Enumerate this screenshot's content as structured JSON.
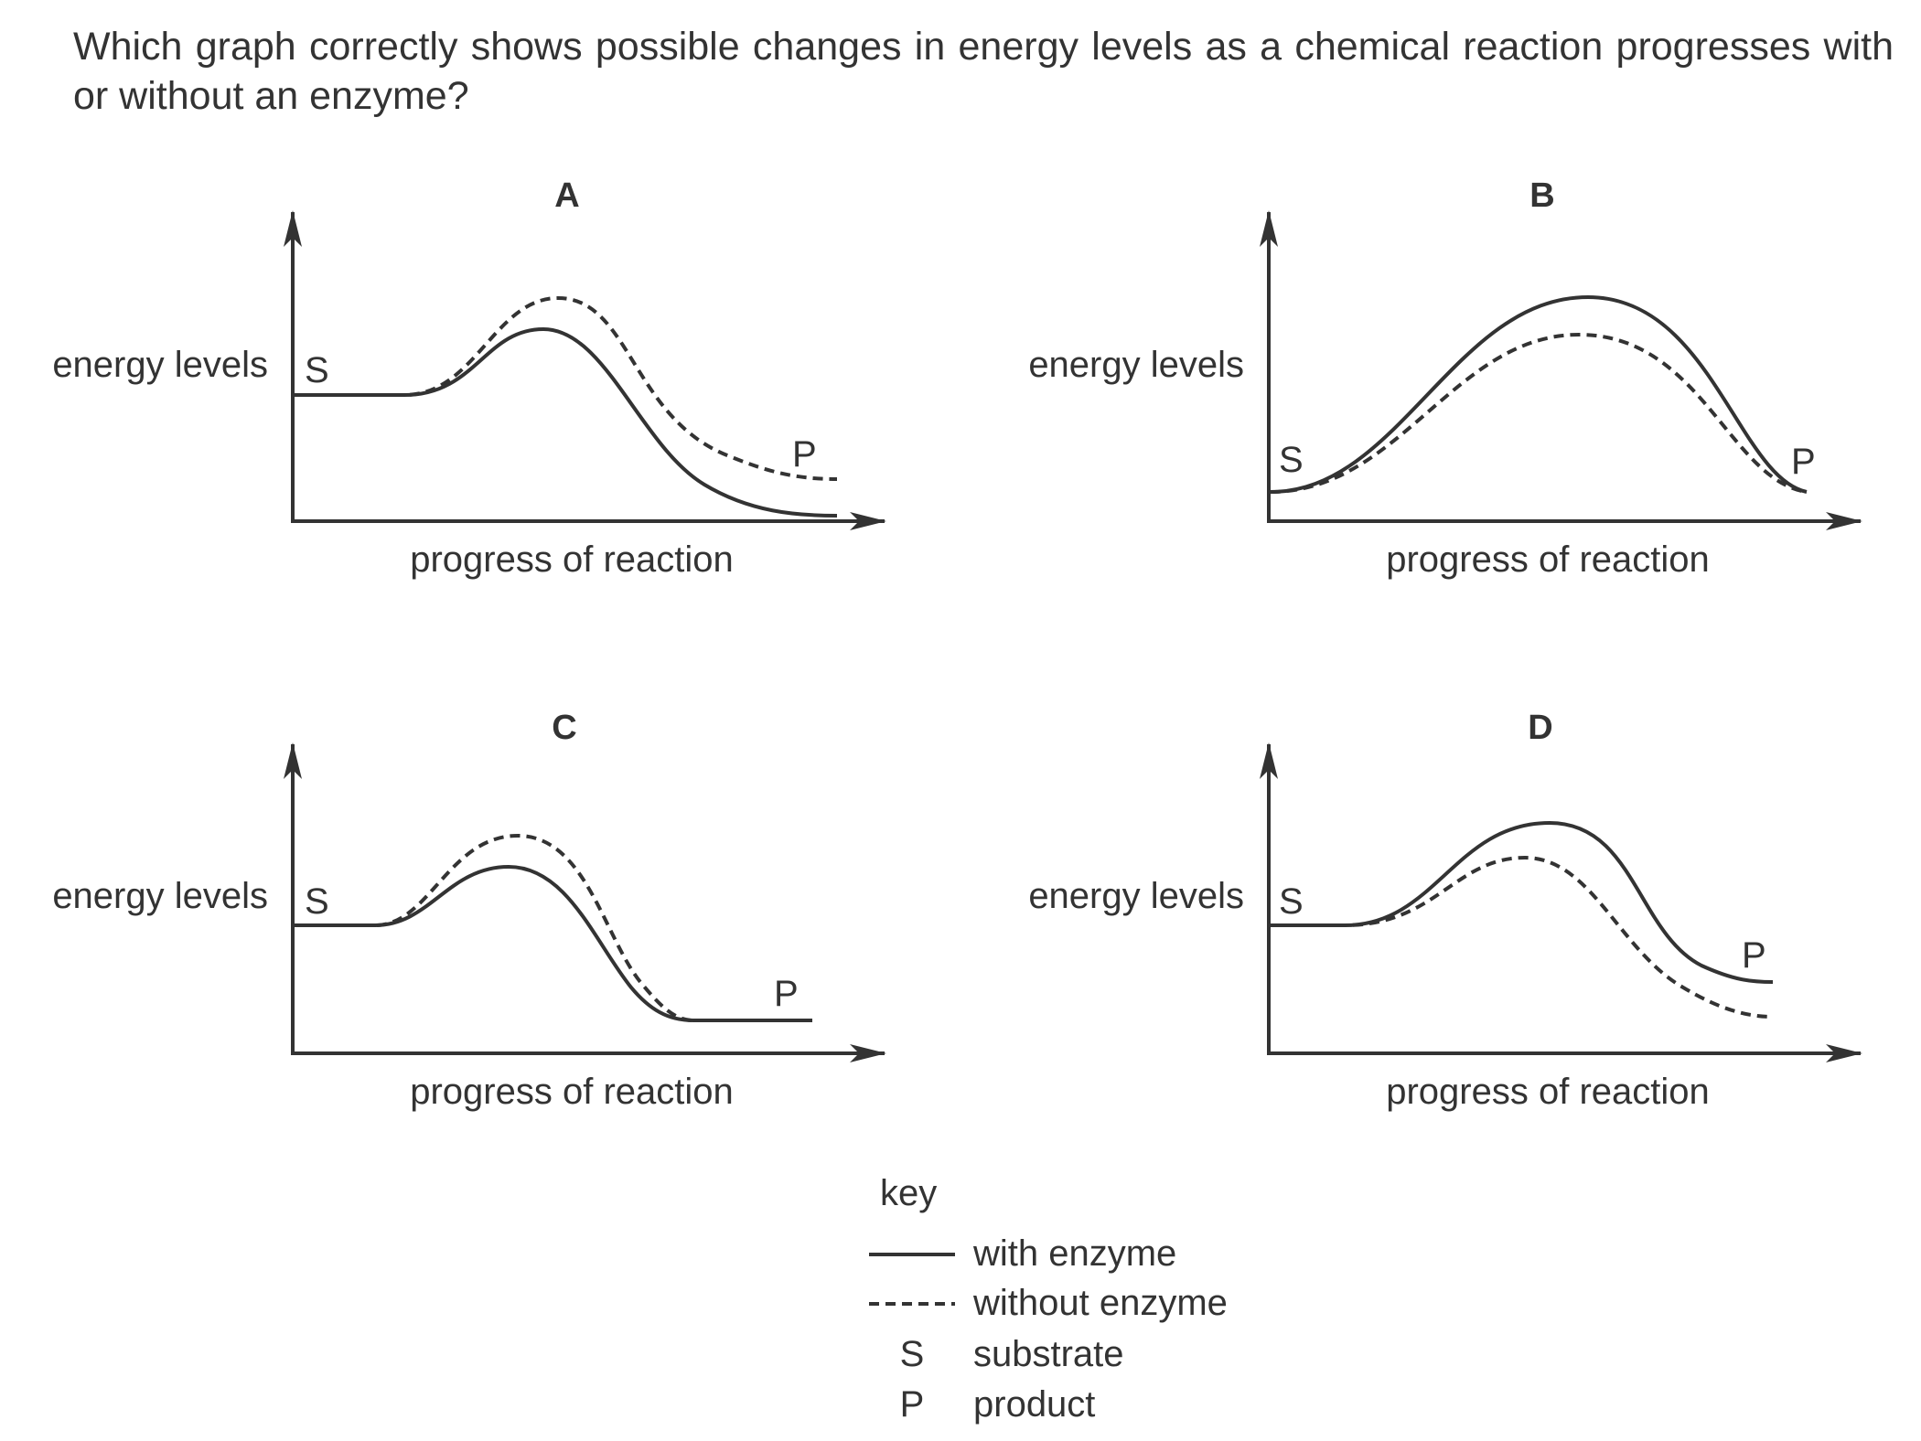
{
  "question": "Which graph correctly shows possible changes in energy levels as a chemical reaction progresses with or without an enzyme?",
  "colors": {
    "ink": "#333333",
    "background": "#ffffff"
  },
  "graphs": [
    {
      "letter": "A",
      "y_axis_label": "energy levels",
      "x_axis_label": "progress of reaction",
      "start_label": "S",
      "end_label": "P"
    },
    {
      "letter": "B",
      "y_axis_label": "energy levels",
      "x_axis_label": "progress of reaction",
      "start_label": "S",
      "end_label": "P"
    },
    {
      "letter": "C",
      "y_axis_label": "energy levels",
      "x_axis_label": "progress of reaction",
      "start_label": "S",
      "end_label": "P"
    },
    {
      "letter": "D",
      "y_axis_label": "energy levels",
      "x_axis_label": "progress of reaction",
      "start_label": "S",
      "end_label": "P"
    }
  ],
  "key": {
    "title": "key",
    "entries": [
      {
        "symbol": "solid-line",
        "label": "with enzyme"
      },
      {
        "symbol": "dashed-line",
        "label": "without enzyme"
      },
      {
        "symbol": "S",
        "label": "substrate"
      },
      {
        "symbol": "P",
        "label": "product"
      }
    ]
  }
}
